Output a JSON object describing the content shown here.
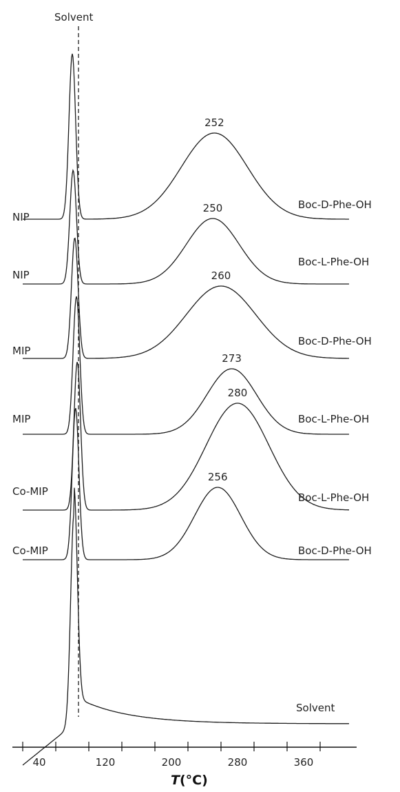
{
  "chart_data": {
    "type": "line",
    "solvent_marker_label": "Solvent",
    "xlabel_italic": "T",
    "xlabel_rest": "(°C)",
    "x_ticks": [
      40,
      120,
      200,
      280,
      360
    ],
    "series": [
      {
        "left_label": "NIP",
        "right_label": "Boc-D-Phe-OH",
        "peak_label": "252",
        "peaks": [
          {
            "x": 80,
            "height": 240,
            "width": 4
          },
          {
            "x": 252,
            "height": 125,
            "width": 40
          }
        ],
        "baseline": "flat"
      },
      {
        "left_label": "NIP",
        "right_label": "Boc-L-Phe-OH",
        "peak_label": "250",
        "peaks": [
          {
            "x": 81,
            "height": 165,
            "width": 4
          },
          {
            "x": 250,
            "height": 95,
            "width": 32
          }
        ],
        "baseline": "flat"
      },
      {
        "left_label": "MIP",
        "right_label": "Boc-D-Phe-OH",
        "peak_label": "260",
        "peaks": [
          {
            "x": 83,
            "height": 175,
            "width": 4
          },
          {
            "x": 260,
            "height": 105,
            "width": 42
          }
        ],
        "baseline": "flat"
      },
      {
        "left_label": "MIP",
        "right_label": "Boc-L-Phe-OH",
        "peak_label": "273",
        "peaks": [
          {
            "x": 85,
            "height": 200,
            "width": 4
          },
          {
            "x": 273,
            "height": 95,
            "width": 30
          }
        ],
        "baseline": "flat"
      },
      {
        "left_label": "Co-MIP",
        "right_label": "Boc-L-Phe-OH",
        "peak_label": "280",
        "peaks": [
          {
            "x": 86,
            "height": 215,
            "width": 4
          },
          {
            "x": 280,
            "height": 155,
            "width": 38
          }
        ],
        "baseline": "flat"
      },
      {
        "left_label": "Co-MIP",
        "right_label": "Boc-D-Phe-OH",
        "peak_label": "256",
        "peaks": [
          {
            "x": 84,
            "height": 220,
            "width": 4
          },
          {
            "x": 256,
            "height": 105,
            "width": 28
          }
        ],
        "baseline": "flat"
      },
      {
        "left_label": "",
        "right_label": "Solvent",
        "peak_label": "",
        "peaks": [
          {
            "x": 82,
            "height": 305,
            "width": 4
          }
        ],
        "baseline": "decay"
      }
    ]
  }
}
